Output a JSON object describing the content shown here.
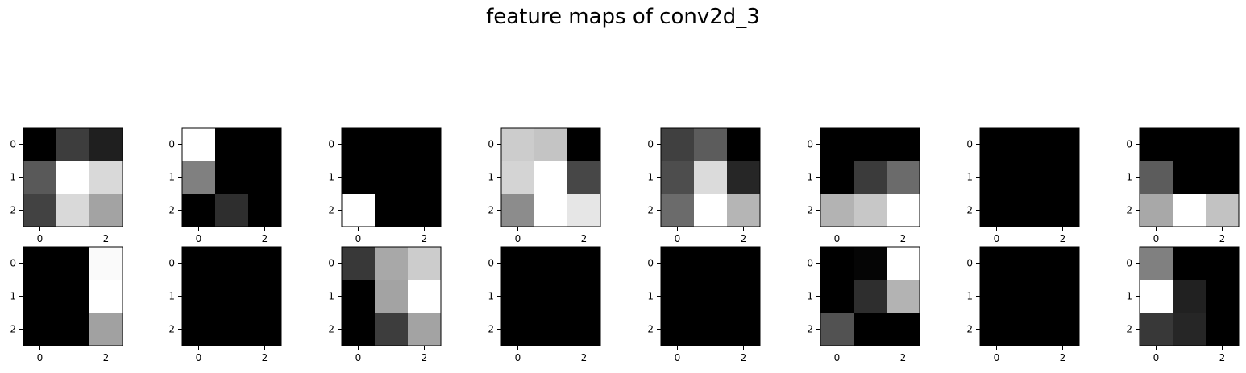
{
  "title": "feature maps of conv2d_3",
  "colormap": "gray",
  "chart_data": {
    "type": "heatmap",
    "title": "feature maps of conv2d_3",
    "rows": 2,
    "cols": 8,
    "x_ticks": [
      "0",
      "2"
    ],
    "y_ticks": [
      "0",
      "1",
      "2"
    ],
    "value_range": [
      0,
      1
    ],
    "maps": [
      [
        [
          0.0,
          0.24,
          0.12
        ],
        [
          0.35,
          1.0,
          0.85
        ],
        [
          0.26,
          0.85,
          0.64
        ]
      ],
      [
        [
          1.0,
          0.0,
          0.0
        ],
        [
          0.5,
          0.0,
          0.0
        ],
        [
          0.0,
          0.18,
          0.0
        ]
      ],
      [
        [
          0.0,
          0.0,
          0.0
        ],
        [
          0.0,
          0.0,
          0.0
        ],
        [
          1.0,
          0.0,
          0.0
        ]
      ],
      [
        [
          0.8,
          0.77,
          0.0
        ],
        [
          0.83,
          1.0,
          0.28
        ],
        [
          0.55,
          1.0,
          0.9
        ]
      ],
      [
        [
          0.25,
          0.36,
          0.0
        ],
        [
          0.3,
          0.86,
          0.15
        ],
        [
          0.42,
          1.0,
          0.71
        ]
      ],
      [
        [
          0.0,
          0.0,
          0.0
        ],
        [
          0.0,
          0.23,
          0.42
        ],
        [
          0.7,
          0.78,
          1.0
        ]
      ],
      [
        [
          0.0,
          0.0,
          0.0
        ],
        [
          0.0,
          0.0,
          0.0
        ],
        [
          0.0,
          0.0,
          0.0
        ]
      ],
      [
        [
          0.0,
          0.0,
          0.0
        ],
        [
          0.36,
          0.0,
          0.0
        ],
        [
          0.66,
          1.0,
          0.76
        ]
      ],
      [
        [
          0.0,
          0.0,
          0.98
        ],
        [
          0.0,
          0.0,
          1.0
        ],
        [
          0.0,
          0.0,
          0.63
        ]
      ],
      [
        [
          0.0,
          0.0,
          0.0
        ],
        [
          0.0,
          0.0,
          0.0
        ],
        [
          0.0,
          0.0,
          0.0
        ]
      ],
      [
        [
          0.22,
          0.66,
          0.8
        ],
        [
          0.0,
          0.64,
          1.0
        ],
        [
          0.0,
          0.24,
          0.64
        ]
      ],
      [
        [
          0.0,
          0.0,
          0.0
        ],
        [
          0.0,
          0.0,
          0.0
        ],
        [
          0.0,
          0.0,
          0.0
        ]
      ],
      [
        [
          0.0,
          0.0,
          0.0
        ],
        [
          0.0,
          0.0,
          0.0
        ],
        [
          0.0,
          0.0,
          0.0
        ]
      ],
      [
        [
          0.0,
          0.02,
          1.0
        ],
        [
          0.0,
          0.18,
          0.7
        ],
        [
          0.32,
          0.0,
          0.0
        ]
      ],
      [
        [
          0.0,
          0.0,
          0.0
        ],
        [
          0.0,
          0.0,
          0.0
        ],
        [
          0.0,
          0.0,
          0.0
        ]
      ],
      [
        [
          0.5,
          0.0,
          0.0
        ],
        [
          1.0,
          0.13,
          0.0
        ],
        [
          0.22,
          0.15,
          0.0
        ]
      ]
    ]
  }
}
